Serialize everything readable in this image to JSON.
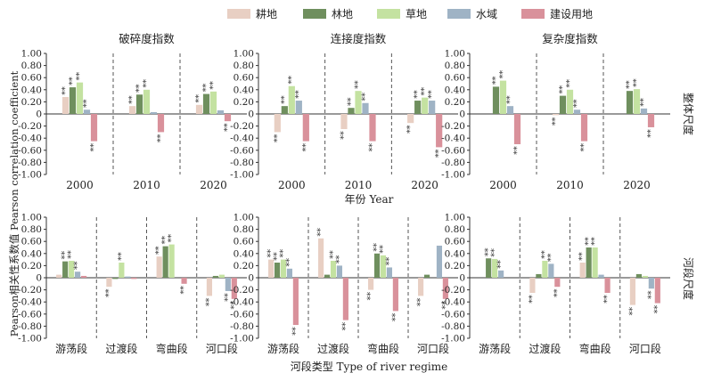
{
  "figure": {
    "ylabel": "Pearson相关性系数值  Pearson correlation coefficient",
    "row_labels": [
      "整体尺度",
      "河段尺度"
    ],
    "row_xlabels": [
      "年份 Year",
      "河段类型  Type of river regime"
    ],
    "sig_marker": "**"
  },
  "legend": [
    {
      "name": "耕地",
      "color": "#e8cfc3"
    },
    {
      "name": "林地",
      "color": "#6f8f5e"
    },
    {
      "name": "草地",
      "color": "#c4e2a1"
    },
    {
      "name": "水域",
      "color": "#9fb3c5"
    },
    {
      "name": "建设用地",
      "color": "#d9919b"
    }
  ],
  "chart_data": [
    {
      "type": "bar",
      "title": "破碎度指数",
      "row": 0,
      "col": 0,
      "categories": [
        "2000",
        "2010",
        "2020"
      ],
      "ylim": [
        -1,
        1
      ],
      "yticks": [
        "1.00",
        "0.80",
        "0.60",
        "0.40",
        "0.20",
        "0",
        "-0.20",
        "-0.40",
        "-0.60",
        "-0.80",
        "-1.00"
      ],
      "series": [
        {
          "name": "耕地",
          "values": [
            0.28,
            0.13,
            0.15
          ],
          "sig": [
            true,
            true,
            true
          ]
        },
        {
          "name": "林地",
          "values": [
            0.44,
            0.32,
            0.33
          ],
          "sig": [
            true,
            true,
            true
          ]
        },
        {
          "name": "草地",
          "values": [
            0.52,
            0.4,
            0.37
          ],
          "sig": [
            true,
            true,
            true
          ]
        },
        {
          "name": "水域",
          "values": [
            0.07,
            0.03,
            0.06
          ],
          "sig": [
            true,
            false,
            false
          ]
        },
        {
          "name": "建设用地",
          "values": [
            -0.45,
            -0.3,
            -0.12
          ],
          "sig": [
            true,
            true,
            true
          ]
        }
      ]
    },
    {
      "type": "bar",
      "title": "连接度指数",
      "row": 0,
      "col": 1,
      "categories": [
        "2000",
        "2010",
        "2020"
      ],
      "ylim": [
        -1,
        1
      ],
      "yticks": [
        "1.00",
        "0.80",
        "0.60",
        "0.40",
        "0.20",
        "0",
        "-0.20",
        "-0.40",
        "-0.60",
        "-0.80",
        "-1.00"
      ],
      "series": [
        {
          "name": "耕地",
          "values": [
            -0.3,
            -0.25,
            -0.15
          ],
          "sig": [
            true,
            true,
            true
          ]
        },
        {
          "name": "林地",
          "values": [
            0.13,
            0.1,
            0.22
          ],
          "sig": [
            true,
            true,
            true
          ]
        },
        {
          "name": "草地",
          "values": [
            0.46,
            0.38,
            0.27
          ],
          "sig": [
            true,
            true,
            true
          ]
        },
        {
          "name": "水域",
          "values": [
            0.22,
            0.18,
            0.22
          ],
          "sig": [
            true,
            true,
            true
          ]
        },
        {
          "name": "建设用地",
          "values": [
            -0.45,
            -0.45,
            -0.55
          ],
          "sig": [
            true,
            true,
            true
          ]
        }
      ]
    },
    {
      "type": "bar",
      "title": "复杂度指数",
      "row": 0,
      "col": 2,
      "categories": [
        "2000",
        "2010",
        "2020"
      ],
      "ylim": [
        -1,
        1
      ],
      "yticks": [
        "1.00",
        "0.80",
        "0.60",
        "0.40",
        "0.20",
        "0",
        "-0.20",
        "-0.40",
        "-0.60",
        "-0.80",
        "-1.00"
      ],
      "series": [
        {
          "name": "耕地",
          "values": [
            0.0,
            -0.02,
            0.0
          ],
          "sig": [
            false,
            true,
            false
          ]
        },
        {
          "name": "林地",
          "values": [
            0.45,
            0.3,
            0.38
          ],
          "sig": [
            true,
            true,
            true
          ]
        },
        {
          "name": "草地",
          "values": [
            0.55,
            0.4,
            0.41
          ],
          "sig": [
            true,
            true,
            true
          ]
        },
        {
          "name": "水域",
          "values": [
            0.13,
            0.07,
            0.09
          ],
          "sig": [
            true,
            true,
            true
          ]
        },
        {
          "name": "建设用地",
          "values": [
            -0.5,
            -0.45,
            -0.22
          ],
          "sig": [
            true,
            true,
            true
          ]
        }
      ]
    },
    {
      "type": "bar",
      "title": "",
      "row": 1,
      "col": 0,
      "categories": [
        "游荡段",
        "过渡段",
        "弯曲段",
        "河口段"
      ],
      "ylim": [
        -1,
        1
      ],
      "yticks": [
        "1.00",
        "0.80",
        "0.60",
        "0.40",
        "0.20",
        "0",
        "-0.20",
        "-0.40",
        "-0.60",
        "-0.80",
        "-1.00"
      ],
      "series": [
        {
          "name": "耕地",
          "values": [
            0.05,
            -0.15,
            0.35,
            -0.3
          ],
          "sig": [
            false,
            true,
            true,
            true
          ]
        },
        {
          "name": "林地",
          "values": [
            0.27,
            -0.02,
            0.52,
            0.03
          ],
          "sig": [
            true,
            false,
            true,
            false
          ]
        },
        {
          "name": "草地",
          "values": [
            0.28,
            0.25,
            0.55,
            0.05
          ],
          "sig": [
            true,
            true,
            true,
            false
          ]
        },
        {
          "name": "水域",
          "values": [
            0.1,
            0.02,
            0.0,
            -0.22
          ],
          "sig": [
            true,
            false,
            false,
            true
          ]
        },
        {
          "name": "建设用地",
          "values": [
            0.03,
            -0.02,
            -0.1,
            -0.35
          ],
          "sig": [
            false,
            false,
            true,
            true
          ]
        }
      ]
    },
    {
      "type": "bar",
      "title": "",
      "row": 1,
      "col": 1,
      "categories": [
        "游荡段",
        "过渡段",
        "弯曲段",
        "河口段"
      ],
      "ylim": [
        -1,
        1
      ],
      "yticks": [
        "1.00",
        "0.80",
        "0.60",
        "0.40",
        "0.20",
        "0",
        "-0.20",
        "-0.40",
        "-0.60",
        "-0.80",
        "-1.00"
      ],
      "series": [
        {
          "name": "耕地",
          "values": [
            0.3,
            0.65,
            -0.2,
            -0.3
          ],
          "sig": [
            true,
            true,
            true,
            true
          ]
        },
        {
          "name": "林地",
          "values": [
            0.25,
            0.05,
            0.4,
            0.05
          ],
          "sig": [
            true,
            false,
            true,
            false
          ]
        },
        {
          "name": "草地",
          "values": [
            0.3,
            0.28,
            0.37,
            0.0
          ],
          "sig": [
            true,
            true,
            true,
            false
          ]
        },
        {
          "name": "水域",
          "values": [
            0.15,
            0.2,
            0.17,
            0.53
          ],
          "sig": [
            true,
            true,
            true,
            false
          ]
        },
        {
          "name": "建设用地",
          "values": [
            -0.78,
            -0.7,
            -0.55,
            -0.35
          ],
          "sig": [
            true,
            true,
            true,
            true
          ]
        }
      ]
    },
    {
      "type": "bar",
      "title": "",
      "row": 1,
      "col": 2,
      "categories": [
        "游荡段",
        "过渡段",
        "弯曲段",
        "河口段"
      ],
      "ylim": [
        -1,
        1
      ],
      "yticks": [
        "1.00",
        "0.80",
        "0.60",
        "0.40",
        "0.20",
        "0",
        "-0.20",
        "-0.40",
        "-0.60",
        "-0.80",
        "-1.00"
      ],
      "series": [
        {
          "name": "耕地",
          "values": [
            0.0,
            -0.25,
            0.25,
            -0.45
          ],
          "sig": [
            false,
            true,
            true,
            true
          ]
        },
        {
          "name": "林地",
          "values": [
            0.32,
            0.06,
            0.5,
            0.06
          ],
          "sig": [
            true,
            false,
            true,
            false
          ]
        },
        {
          "name": "草地",
          "values": [
            0.31,
            0.28,
            0.5,
            0.03
          ],
          "sig": [
            true,
            true,
            true,
            false
          ]
        },
        {
          "name": "水域",
          "values": [
            0.12,
            0.23,
            0.05,
            -0.18
          ],
          "sig": [
            true,
            true,
            false,
            true
          ]
        },
        {
          "name": "建设用地",
          "values": [
            0.0,
            -0.15,
            -0.25,
            -0.42
          ],
          "sig": [
            false,
            true,
            true,
            true
          ]
        }
      ]
    }
  ]
}
